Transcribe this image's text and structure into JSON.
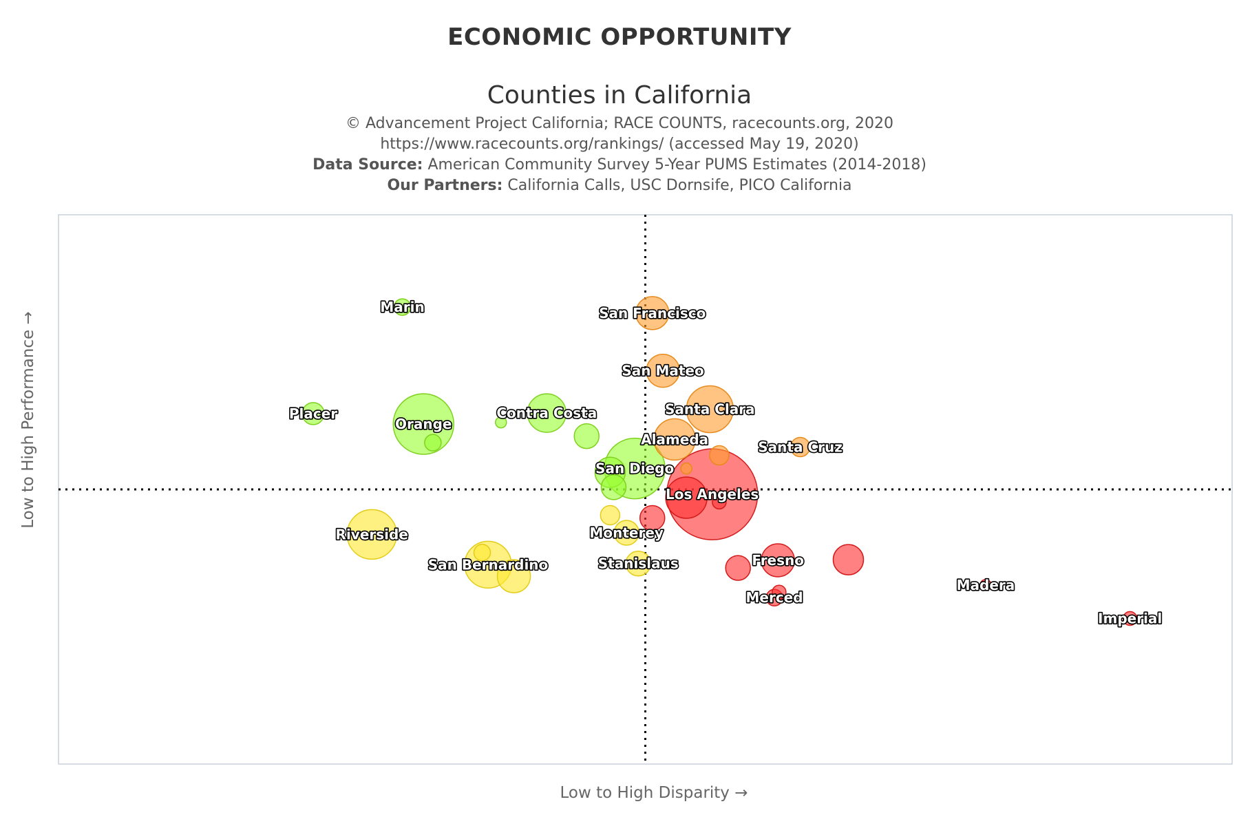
{
  "header": {
    "title": "ECONOMIC OPPORTUNITY",
    "subtitle": "Counties in California",
    "credit_line1": "© Advancement Project California; RACE COUNTS, racecounts.org, 2020",
    "credit_line2": "https://www.racecounts.org/rankings/ (accessed May 19, 2020)",
    "data_source_label": "Data Source:",
    "data_source_text": "American Community Survey 5-Year PUMS Estimates (2014-2018)",
    "partners_label": "Our Partners:",
    "partners_text": "California Calls, USC Dornsife, PICO California"
  },
  "chart_data": {
    "type": "scatter",
    "title": "ECONOMIC OPPORTUNITY",
    "subtitle": "Counties in California",
    "xlabel": "Low to High Disparity →",
    "ylabel": "Low to High Performance →",
    "xlim": [
      0,
      100
    ],
    "ylim": [
      0,
      100
    ],
    "quadrant_divider": {
      "x": 50,
      "y": 50
    },
    "grid": false,
    "colors": {
      "green": "#99ff33",
      "orange": "#ff9f33",
      "yellow": "#ffe833",
      "red": "#ff3333"
    },
    "points": [
      {
        "label": "Marin",
        "x": 29.3,
        "y": 83.2,
        "size": 12,
        "color": "green"
      },
      {
        "label": "San Francisco",
        "x": 50.6,
        "y": 82.1,
        "size": 24,
        "color": "orange"
      },
      {
        "label": "San Mateo",
        "x": 51.5,
        "y": 71.6,
        "size": 24,
        "color": "orange"
      },
      {
        "label": "Placer",
        "x": 21.7,
        "y": 63.8,
        "size": 16,
        "color": "green"
      },
      {
        "label": "Orange",
        "x": 31.1,
        "y": 61.9,
        "size": 44,
        "color": "green"
      },
      {
        "label": "",
        "x": 31.9,
        "y": 58.5,
        "size": 12,
        "color": "green"
      },
      {
        "label": "",
        "x": 37.7,
        "y": 62.2,
        "size": 8,
        "color": "green"
      },
      {
        "label": "Contra Costa",
        "x": 41.6,
        "y": 63.9,
        "size": 28,
        "color": "green"
      },
      {
        "label": "",
        "x": 45.0,
        "y": 59.7,
        "size": 18,
        "color": "green"
      },
      {
        "label": "Santa Clara",
        "x": 55.5,
        "y": 64.6,
        "size": 34,
        "color": "orange"
      },
      {
        "label": "Alameda",
        "x": 52.5,
        "y": 59.1,
        "size": 30,
        "color": "orange"
      },
      {
        "label": "",
        "x": 56.3,
        "y": 56.2,
        "size": 14,
        "color": "orange"
      },
      {
        "label": "",
        "x": 53.5,
        "y": 53.8,
        "size": 8,
        "color": "orange"
      },
      {
        "label": "Santa Cruz",
        "x": 63.2,
        "y": 57.7,
        "size": 14,
        "color": "orange"
      },
      {
        "label": "San Diego",
        "x": 49.1,
        "y": 53.8,
        "size": 44,
        "color": "green"
      },
      {
        "label": "",
        "x": 47.0,
        "y": 53.1,
        "size": 22,
        "color": "green"
      },
      {
        "label": "",
        "x": 47.3,
        "y": 50.4,
        "size": 18,
        "color": "green"
      },
      {
        "label": "Los Angeles",
        "x": 55.7,
        "y": 49.1,
        "size": 66,
        "color": "red"
      },
      {
        "label": "",
        "x": 53.5,
        "y": 48.5,
        "size": 30,
        "color": "red"
      },
      {
        "label": "",
        "x": 56.3,
        "y": 47.7,
        "size": 10,
        "color": "red"
      },
      {
        "label": "",
        "x": 50.6,
        "y": 44.8,
        "size": 18,
        "color": "red"
      },
      {
        "label": "Riverside",
        "x": 26.7,
        "y": 41.8,
        "size": 36,
        "color": "yellow"
      },
      {
        "label": "San Bernardino",
        "x": 36.6,
        "y": 36.3,
        "size": 34,
        "color": "yellow"
      },
      {
        "label": "",
        "x": 38.8,
        "y": 34.2,
        "size": 24,
        "color": "yellow"
      },
      {
        "label": "",
        "x": 36.1,
        "y": 38.5,
        "size": 12,
        "color": "yellow"
      },
      {
        "label": "Monterey",
        "x": 48.4,
        "y": 42.1,
        "size": 18,
        "color": "yellow"
      },
      {
        "label": "",
        "x": 47.0,
        "y": 45.3,
        "size": 14,
        "color": "yellow"
      },
      {
        "label": "Stanislaus",
        "x": 49.4,
        "y": 36.5,
        "size": 18,
        "color": "yellow"
      },
      {
        "label": "Fresno",
        "x": 61.3,
        "y": 37.1,
        "size": 24,
        "color": "red"
      },
      {
        "label": "",
        "x": 57.9,
        "y": 35.7,
        "size": 18,
        "color": "red"
      },
      {
        "label": "",
        "x": 67.3,
        "y": 37.2,
        "size": 22,
        "color": "red"
      },
      {
        "label": "Merced",
        "x": 61.0,
        "y": 30.3,
        "size": 12,
        "color": "red"
      },
      {
        "label": "",
        "x": 61.4,
        "y": 31.3,
        "size": 10,
        "color": "red"
      },
      {
        "label": "Madera",
        "x": 79.0,
        "y": 32.6,
        "size": 8,
        "color": "red"
      },
      {
        "label": "Imperial",
        "x": 91.3,
        "y": 26.5,
        "size": 10,
        "color": "red"
      }
    ]
  }
}
